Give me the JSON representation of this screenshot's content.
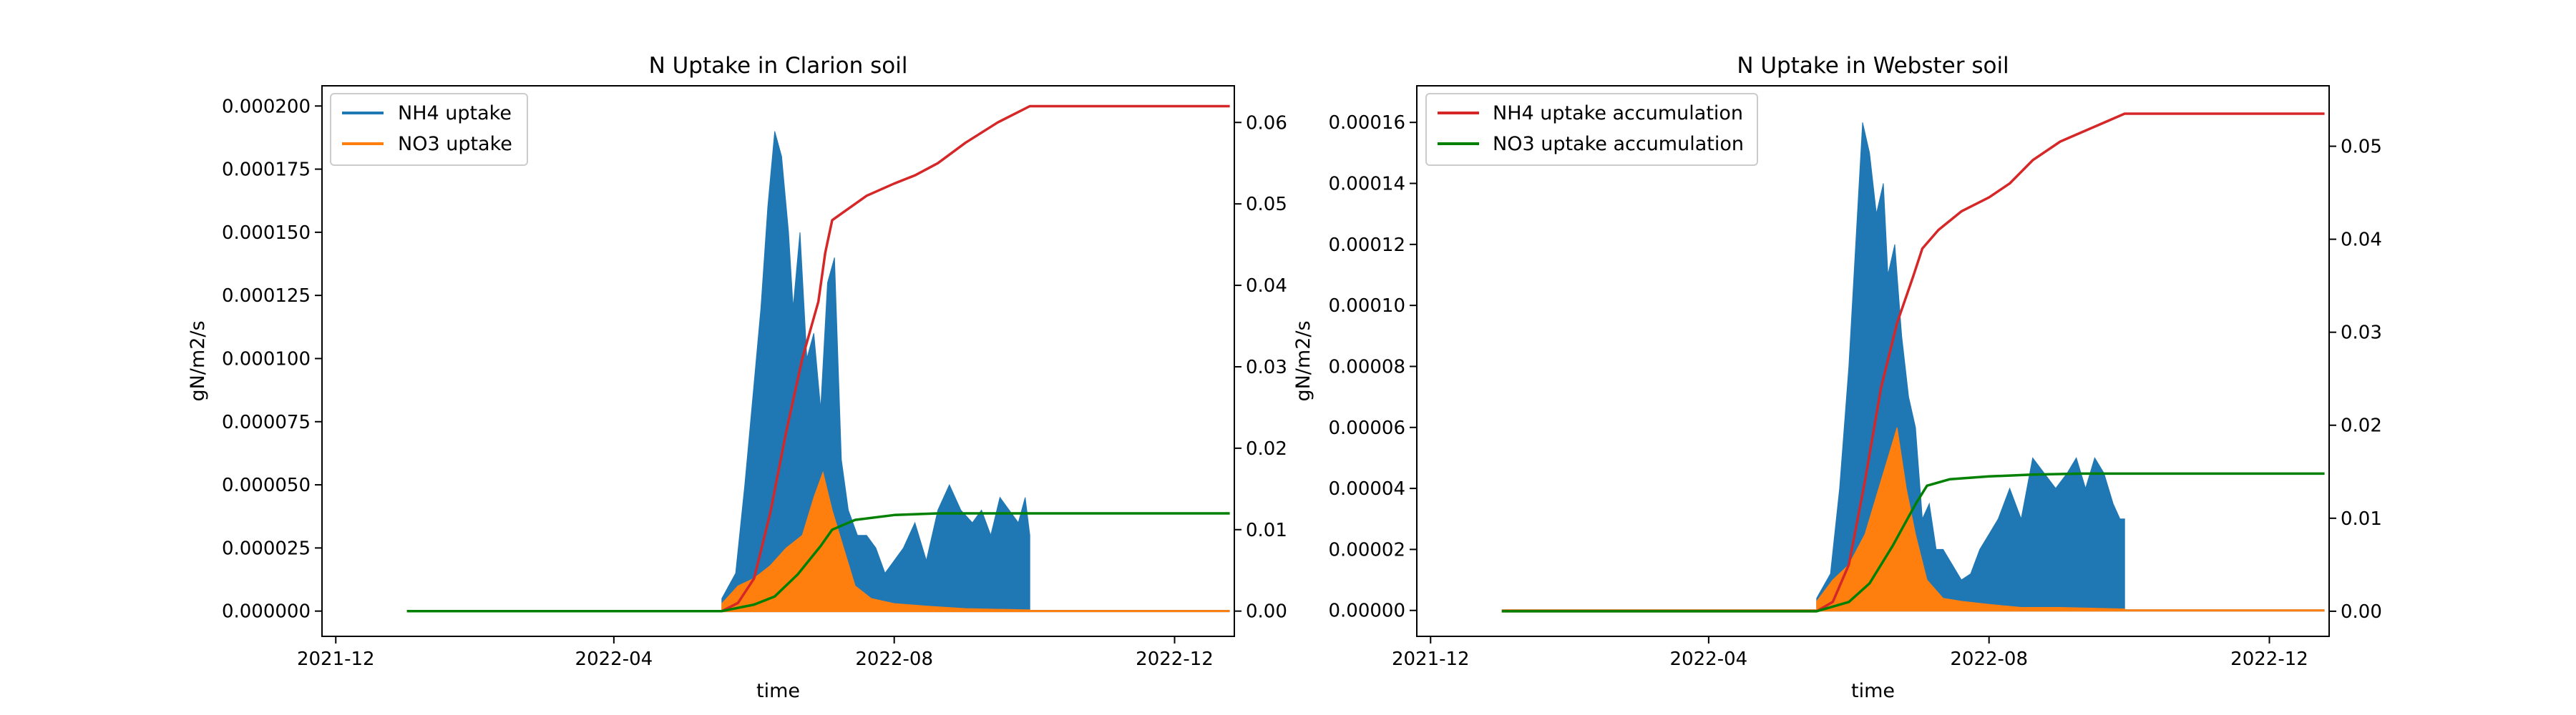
{
  "chart_data": [
    {
      "type": "line",
      "title": "N Uptake in Clarion soil",
      "xlabel": "time",
      "ylabel": "gN/m2/s",
      "x_ticks": [
        "2021-12",
        "2022-04",
        "2022-08",
        "2022-12"
      ],
      "xlim": [
        "2021-11-25",
        "2022-12-27"
      ],
      "ylim": [
        -1e-05,
        0.000208
      ],
      "y_ticks": [
        "0.000000",
        "0.000025",
        "0.000050",
        "0.000075",
        "0.000100",
        "0.000125",
        "0.000150",
        "0.000175",
        "0.000200"
      ],
      "y2lim": [
        -0.0031,
        0.0645
      ],
      "y2_ticks": [
        "0.00",
        "0.01",
        "0.02",
        "0.03",
        "0.04",
        "0.05",
        "0.06"
      ],
      "legend": {
        "placement": "upper-left",
        "entries": [
          "NH4 uptake",
          "NO3 uptake"
        ]
      },
      "colors": {
        "nh4": "#1f77b4",
        "no3": "#ff7f0e",
        "nh4_acc": "#d62728",
        "no3_acc": "#008000"
      },
      "series": [
        {
          "name": "NH4 uptake",
          "axis": "left",
          "style": "fill",
          "x": [
            "2022-05-18",
            "2022-05-24",
            "2022-05-28",
            "2022-06-01",
            "2022-06-04",
            "2022-06-07",
            "2022-06-10",
            "2022-06-13",
            "2022-06-16",
            "2022-06-18",
            "2022-06-21",
            "2022-06-24",
            "2022-06-27",
            "2022-06-30",
            "2022-07-03",
            "2022-07-06",
            "2022-07-09",
            "2022-07-12",
            "2022-07-16",
            "2022-07-20",
            "2022-07-24",
            "2022-07-28",
            "2022-08-01",
            "2022-08-05",
            "2022-08-10",
            "2022-08-15",
            "2022-08-20",
            "2022-08-25",
            "2022-08-30",
            "2022-09-04",
            "2022-09-08",
            "2022-09-12",
            "2022-09-16",
            "2022-09-20",
            "2022-09-24",
            "2022-09-27",
            "2022-09-29"
          ],
          "values": [
            5e-06,
            1.5e-05,
            5e-05,
            9e-05,
            0.00012,
            0.00016,
            0.00019,
            0.00018,
            0.00015,
            0.00012,
            0.00015,
            0.0001,
            0.00011,
            8e-05,
            0.00013,
            0.00014,
            6e-05,
            4e-05,
            3e-05,
            3e-05,
            2.5e-05,
            1.5e-05,
            2e-05,
            2.5e-05,
            3.5e-05,
            2e-05,
            4e-05,
            5e-05,
            4e-05,
            3.5e-05,
            4e-05,
            3e-05,
            4.5e-05,
            4e-05,
            3.5e-05,
            4.5e-05,
            3e-05
          ]
        },
        {
          "name": "NO3 uptake",
          "axis": "left",
          "style": "fill",
          "x": [
            "2022-05-18",
            "2022-05-25",
            "2022-06-01",
            "2022-06-08",
            "2022-06-15",
            "2022-06-22",
            "2022-06-27",
            "2022-07-01",
            "2022-07-05",
            "2022-07-10",
            "2022-07-15",
            "2022-07-22",
            "2022-08-01",
            "2022-08-15",
            "2022-09-01",
            "2022-09-29"
          ],
          "values": [
            3e-06,
            1e-05,
            1.3e-05,
            1.8e-05,
            2.5e-05,
            3e-05,
            4.5e-05,
            5.5e-05,
            4e-05,
            2.5e-05,
            1e-05,
            5e-06,
            3e-06,
            2e-06,
            1e-06,
            5e-07
          ]
        },
        {
          "name": "NH4 uptake accumulation",
          "axis": "right",
          "style": "line",
          "x": [
            "2022-01-01",
            "2022-05-18",
            "2022-05-25",
            "2022-06-01",
            "2022-06-08",
            "2022-06-15",
            "2022-06-22",
            "2022-06-29",
            "2022-07-02",
            "2022-07-05",
            "2022-07-10",
            "2022-07-20",
            "2022-08-01",
            "2022-08-10",
            "2022-08-20",
            "2022-09-01",
            "2022-09-15",
            "2022-09-29",
            "2022-12-25"
          ],
          "values": [
            0,
            0,
            0.001,
            0.004,
            0.012,
            0.022,
            0.031,
            0.038,
            0.044,
            0.048,
            0.049,
            0.051,
            0.0525,
            0.0535,
            0.055,
            0.0575,
            0.06,
            0.062,
            0.062
          ]
        },
        {
          "name": "NO3 uptake accumulation",
          "axis": "right",
          "style": "line",
          "x": [
            "2022-01-01",
            "2022-05-18",
            "2022-06-01",
            "2022-06-10",
            "2022-06-20",
            "2022-06-30",
            "2022-07-05",
            "2022-07-15",
            "2022-08-01",
            "2022-08-20",
            "2022-12-25"
          ],
          "values": [
            0,
            0,
            0.0008,
            0.0018,
            0.0045,
            0.008,
            0.01,
            0.0112,
            0.0118,
            0.012,
            0.012
          ]
        }
      ]
    },
    {
      "type": "line",
      "title": "N Uptake in Webster soil",
      "xlabel": "time",
      "ylabel": "gN/m2/s",
      "x_ticks": [
        "2021-12",
        "2022-04",
        "2022-08",
        "2022-12"
      ],
      "xlim": [
        "2021-11-25",
        "2022-12-27"
      ],
      "ylim": [
        -8.5e-06,
        0.000172
      ],
      "y_ticks": [
        "0.00000",
        "0.00002",
        "0.00004",
        "0.00006",
        "0.00008",
        "0.00010",
        "0.00012",
        "0.00014",
        "0.00016"
      ],
      "y2lim": [
        -0.0027,
        0.0565
      ],
      "y2_ticks": [
        "0.00",
        "0.01",
        "0.02",
        "0.03",
        "0.04",
        "0.05"
      ],
      "legend": {
        "placement": "upper-left",
        "entries": [
          "NH4 uptake accumulation",
          "NO3 uptake accumulation"
        ]
      },
      "colors": {
        "nh4": "#1f77b4",
        "no3": "#ff7f0e",
        "nh4_acc": "#d62728",
        "no3_acc": "#008000"
      },
      "series": [
        {
          "name": "NH4 uptake",
          "axis": "left",
          "style": "fill",
          "x": [
            "2022-05-18",
            "2022-05-24",
            "2022-05-28",
            "2022-06-01",
            "2022-06-04",
            "2022-06-07",
            "2022-06-10",
            "2022-06-13",
            "2022-06-16",
            "2022-06-18",
            "2022-06-21",
            "2022-06-24",
            "2022-06-27",
            "2022-06-30",
            "2022-07-03",
            "2022-07-06",
            "2022-07-09",
            "2022-07-12",
            "2022-07-16",
            "2022-07-20",
            "2022-07-24",
            "2022-07-28",
            "2022-08-01",
            "2022-08-05",
            "2022-08-10",
            "2022-08-15",
            "2022-08-20",
            "2022-08-25",
            "2022-08-30",
            "2022-09-04",
            "2022-09-08",
            "2022-09-12",
            "2022-09-16",
            "2022-09-20",
            "2022-09-24",
            "2022-09-27",
            "2022-09-29"
          ],
          "values": [
            4e-06,
            1.2e-05,
            4e-05,
            8e-05,
            0.00012,
            0.00016,
            0.00015,
            0.00013,
            0.00014,
            0.00011,
            0.00012,
            9e-05,
            7e-05,
            6e-05,
            3e-05,
            3.5e-05,
            2e-05,
            2e-05,
            1.5e-05,
            1e-05,
            1.2e-05,
            2e-05,
            2.5e-05,
            3e-05,
            4e-05,
            3e-05,
            5e-05,
            4.5e-05,
            4e-05,
            4.5e-05,
            5e-05,
            4e-05,
            5e-05,
            4.5e-05,
            3.5e-05,
            3e-05,
            3e-05
          ]
        },
        {
          "name": "NO3 uptake",
          "axis": "left",
          "style": "fill",
          "x": [
            "2022-05-18",
            "2022-05-25",
            "2022-06-01",
            "2022-06-08",
            "2022-06-14",
            "2022-06-18",
            "2022-06-22",
            "2022-06-26",
            "2022-06-30",
            "2022-07-05",
            "2022-07-12",
            "2022-07-20",
            "2022-08-01",
            "2022-08-15",
            "2022-09-01",
            "2022-09-29"
          ],
          "values": [
            3e-06,
            1e-05,
            1.5e-05,
            2.5e-05,
            4e-05,
            5e-05,
            6e-05,
            4e-05,
            2.5e-05,
            1e-05,
            4e-06,
            3e-06,
            2e-06,
            1e-06,
            1e-06,
            5e-07
          ]
        },
        {
          "name": "NH4 uptake accumulation",
          "axis": "right",
          "style": "line",
          "x": [
            "2022-01-01",
            "2022-05-18",
            "2022-05-25",
            "2022-06-01",
            "2022-06-08",
            "2022-06-15",
            "2022-06-22",
            "2022-06-29",
            "2022-07-03",
            "2022-07-10",
            "2022-07-20",
            "2022-08-01",
            "2022-08-10",
            "2022-08-20",
            "2022-09-01",
            "2022-09-15",
            "2022-09-29",
            "2022-12-25"
          ],
          "values": [
            0,
            0,
            0.001,
            0.005,
            0.014,
            0.024,
            0.031,
            0.036,
            0.039,
            0.041,
            0.043,
            0.0445,
            0.046,
            0.0485,
            0.0505,
            0.052,
            0.0535,
            0.0535
          ]
        },
        {
          "name": "NO3 uptake accumulation",
          "axis": "right",
          "style": "line",
          "x": [
            "2022-01-01",
            "2022-05-18",
            "2022-06-01",
            "2022-06-10",
            "2022-06-20",
            "2022-06-30",
            "2022-07-05",
            "2022-07-15",
            "2022-08-01",
            "2022-08-20",
            "2022-09-10",
            "2022-12-25"
          ],
          "values": [
            0,
            0,
            0.001,
            0.003,
            0.007,
            0.0115,
            0.0135,
            0.0142,
            0.0145,
            0.0147,
            0.0148,
            0.0148
          ]
        }
      ]
    }
  ]
}
